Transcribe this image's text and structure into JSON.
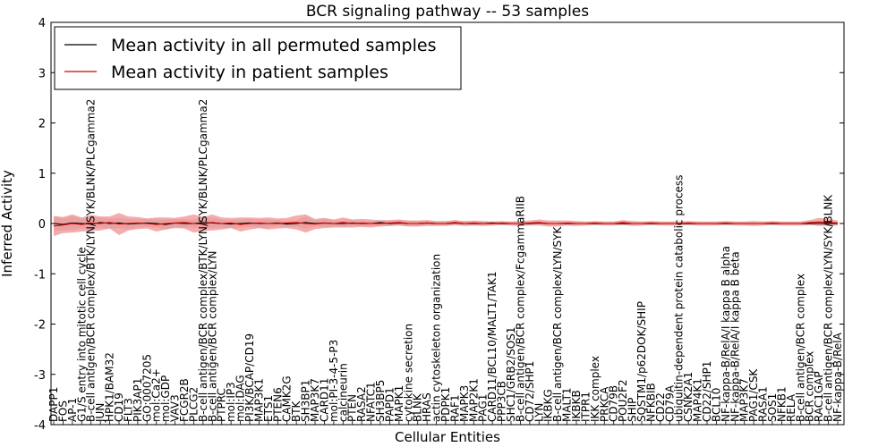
{
  "chart_data": {
    "type": "line",
    "title": "BCR signaling pathway -- 53 samples",
    "xlabel": "Cellular Entities",
    "ylabel": "Inferred Activity",
    "ylim": [
      -4,
      4
    ],
    "yticks": [
      4,
      3,
      2,
      1,
      0,
      -1,
      -2,
      -3,
      -4
    ],
    "legend_position": "top-left",
    "entities": [
      "DAPP1",
      "FOS",
      "AP-1",
      "G1/S entry into mitotic cell cycle",
      "B-cell antigen/BCR complex/BTK/LYN/SYK/BLNK/PLCgamma2",
      "JUN",
      "HPK1/BAM32",
      "CD19",
      "FLT3",
      "PIK3AP1",
      "GO:0007205",
      "mol:Ca2+",
      "mol:GDP",
      "VAV3",
      "FCGR2B",
      "PLCG2",
      "B-cell antigen/BCR complex/BTK/LYN/SYK/BLNK/PLCgamma2",
      "B-cell antigen/BCR complex/LYN",
      "PTPRC",
      "mol:IP3",
      "mol:DAG",
      "PI3K/BCAP/CD19",
      "MAP3K1",
      "ETS1",
      "PTEN6",
      "CAMK2G",
      "BTK",
      "SH3BP1",
      "MAP3K7",
      "CARD11",
      "mol:PI-3-4-5-P3",
      "calcineurin",
      "PTEN",
      "RASA2",
      "NFATC1",
      "SH3BP5",
      "PAPD1",
      "MAPK1",
      "cytokine secretion",
      "BLNK",
      "HRAS",
      "actin cytoskeleton organization",
      "PDPK1",
      "RAF1",
      "MAPK3",
      "MAP2K1",
      "PAG1",
      "CARD11/BCL10/MALT1/TAK1",
      "PPP3CB",
      "SHC1/GRB2/SOS1",
      "B-cell antigen/BCR complex/FcgammaRIIB",
      "CD72/SHP1",
      "LYN",
      "IKBKG",
      "B-cell antigen/BCR complex/LYN/SYK",
      "MALT1",
      "IKBKB",
      "ITPR1",
      "IKK complex",
      "PRKCA",
      "CD79B",
      "POU2F2",
      "SHIP",
      "SQSTM1/p62DOK/SHIP",
      "NFKBIB",
      "CD22",
      "CD79A",
      "ubiquitin-dependent protein catabolic process",
      "CSNK2A1",
      "MAP4K1",
      "CD22/SHP1",
      "BCL10",
      "NF-kappa-B/RelA/I kappa B alpha",
      "NF-kappa-B/RelA/I kappa B beta",
      "MAP3K7",
      "PAG1/CSK",
      "RASA1",
      "SOS1",
      "NFKB1",
      "RELA",
      "B-cell antigen/BCR complex",
      "BCR complex",
      "RAC1GAP",
      "B-cell antigen/BCR complex/LYN/SYK/BLNK",
      "NF-kappa-B/RelA"
    ],
    "series": [
      {
        "name": "Mean activity in all permuted samples",
        "color": "#000000",
        "values": [
          0.0,
          -0.02,
          0.01,
          0.0,
          -0.01,
          0.02,
          0.0,
          0.01,
          -0.01,
          0.0,
          0.01,
          0.0,
          -0.02,
          0.01,
          0.0,
          0.0,
          0.02,
          0.01,
          0.0,
          -0.01,
          0.0,
          0.01,
          0.0,
          0.0,
          0.01,
          -0.01,
          0.0,
          0.02,
          0.0,
          0.01,
          0.0,
          0.0,
          0.01,
          0.0,
          0.0,
          0.02,
          0.0,
          0.01,
          0.0,
          0.0,
          0.01,
          0.0,
          0.0,
          0.01,
          0.0,
          0.0,
          0.0,
          0.01,
          0.0,
          0.0,
          0.0,
          0.0,
          0.01,
          0.0,
          0.0,
          0.0,
          0.0,
          0.0,
          0.0,
          0.0,
          0.0,
          0.0,
          0.0,
          0.0,
          0.0,
          0.0,
          0.0,
          0.0,
          0.0,
          0.0,
          0.0,
          0.0,
          0.0,
          0.0,
          0.0,
          0.0,
          0.0,
          0.0,
          0.0,
          0.0,
          0.0,
          0.0,
          0.0,
          0.0,
          0.0
        ],
        "spread": [
          0.15,
          0.12,
          0.14,
          0.1,
          0.12,
          0.1,
          0.1,
          0.1,
          0.1,
          0.08,
          0.08,
          0.08,
          0.1,
          0.08,
          0.08,
          0.08,
          0.1,
          0.1,
          0.08,
          0.08,
          0.08,
          0.08,
          0.08,
          0.08,
          0.06,
          0.06,
          0.06,
          0.12,
          0.06,
          0.08,
          0.06,
          0.06,
          0.06,
          0.05,
          0.05,
          0.06,
          0.05,
          0.05,
          0.05,
          0.05,
          0.04,
          0.04,
          0.04,
          0.04,
          0.04,
          0.04,
          0.04,
          0.03,
          0.03,
          0.03,
          0.03,
          0.03,
          0.03,
          0.03,
          0.03,
          0.03,
          0.03,
          0.03,
          0.03,
          0.03,
          0.03,
          0.03,
          0.03,
          0.03,
          0.03,
          0.03,
          0.03,
          0.03,
          0.03,
          0.03,
          0.03,
          0.03,
          0.03,
          0.03,
          0.03,
          0.03,
          0.03,
          0.03,
          0.03,
          0.03,
          0.03,
          0.03,
          0.03,
          0.03,
          0.03
        ]
      },
      {
        "name": "Mean activity in patient samples",
        "color": "#cc0000",
        "values": [
          -0.05,
          -0.03,
          0.0,
          -0.02,
          0.01,
          0.0,
          0.02,
          -0.01,
          0.0,
          0.01,
          0.0,
          -0.02,
          0.0,
          0.01,
          0.02,
          0.0,
          -0.01,
          0.02,
          0.0,
          0.01,
          -0.02,
          0.0,
          0.01,
          0.0,
          0.0,
          0.01,
          0.02,
          0.0,
          -0.01,
          0.01,
          0.0,
          0.02,
          0.0,
          0.01,
          0.0,
          0.0,
          0.01,
          0.02,
          0.0,
          0.0,
          0.01,
          0.0,
          0.0,
          0.02,
          0.0,
          0.01,
          0.0,
          0.0,
          0.01,
          0.0,
          0.0,
          0.01,
          0.02,
          0.0,
          0.0,
          0.01,
          0.0,
          0.0,
          0.01,
          0.0,
          0.0,
          0.02,
          0.0,
          0.0,
          0.01,
          0.0,
          0.0,
          0.0,
          0.01,
          0.0,
          0.0,
          0.0,
          0.01,
          0.0,
          0.0,
          0.0,
          0.0,
          0.01,
          0.0,
          0.0,
          0.0,
          0.02,
          0.03,
          0.02,
          0.01
        ],
        "spread": [
          0.2,
          0.16,
          0.18,
          0.14,
          0.16,
          0.14,
          0.12,
          0.22,
          0.14,
          0.12,
          0.1,
          0.14,
          0.12,
          0.1,
          0.12,
          0.18,
          0.14,
          0.16,
          0.12,
          0.1,
          0.14,
          0.12,
          0.1,
          0.12,
          0.1,
          0.1,
          0.14,
          0.18,
          0.1,
          0.1,
          0.08,
          0.1,
          0.08,
          0.08,
          0.08,
          0.06,
          0.06,
          0.06,
          0.06,
          0.06,
          0.06,
          0.05,
          0.05,
          0.05,
          0.05,
          0.05,
          0.05,
          0.04,
          0.04,
          0.04,
          0.05,
          0.05,
          0.06,
          0.06,
          0.06,
          0.05,
          0.05,
          0.04,
          0.04,
          0.04,
          0.04,
          0.05,
          0.05,
          0.04,
          0.04,
          0.04,
          0.04,
          0.04,
          0.04,
          0.04,
          0.04,
          0.04,
          0.04,
          0.04,
          0.04,
          0.05,
          0.04,
          0.04,
          0.04,
          0.04,
          0.04,
          0.05,
          0.08,
          0.07,
          0.05
        ]
      }
    ],
    "colors": {
      "patient_band": "#f08080",
      "permuted_band": "#c8c8c8",
      "frame": "#000000"
    }
  }
}
